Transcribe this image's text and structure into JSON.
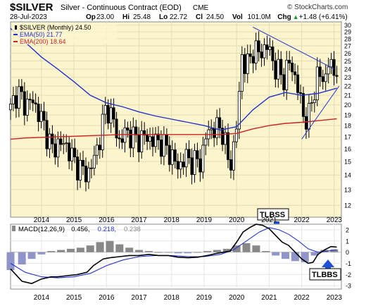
{
  "header": {
    "symbol": "$SILVER",
    "description": "Silver - Continuous Contract (EOD)",
    "exchange": "CME",
    "watermark": "© StockCharts.com",
    "date": "28-Jul-2023",
    "stats": [
      {
        "label": "Op",
        "value": "23.00"
      },
      {
        "label": "Hi",
        "value": "25.48"
      },
      {
        "label": "Lo",
        "value": "22.72"
      },
      {
        "label": "Cl",
        "value": "24.50"
      },
      {
        "label": "Vol",
        "value": "101.0M"
      },
      {
        "label": "Chg",
        "value": "+1.48 (+6.41%)"
      }
    ],
    "stat_arrow": "▲"
  },
  "legend": [
    {
      "text": "$SILVER (Monthly) 24.50",
      "color": "#000000"
    },
    {
      "text": "EMA(50) 21.77",
      "color": "#2233cc"
    },
    {
      "text": "EMA(200) 18.64",
      "color": "#cc2222"
    }
  ],
  "macd_legend": {
    "label": "MACD(12,26,9)",
    "macd": "0.456,",
    "signal": "0.218,",
    "hist": "0.238"
  },
  "annotations": [
    {
      "text": "TLBSS"
    },
    {
      "text": "TLBBS"
    }
  ],
  "colors": {
    "price_bg": "#fbf4cc",
    "candle": "#000000",
    "ema50": "#2233cc",
    "ema200": "#cc2222",
    "trendline": "#2233cc",
    "macd_line": "#000000",
    "signal_line": "#2233cc",
    "hist_pos": "#888888",
    "hist_neg": "#8f95c8",
    "arrow": "#1f4fd6"
  },
  "chart_data": [
    {
      "type": "candlestick",
      "title": "$SILVER Silver - Continuous Contract (EOD) CME",
      "x_ticks": [
        "2014",
        "2015",
        "2016",
        "2017",
        "2018",
        "2019",
        "2020",
        "2021",
        "2022",
        "2023"
      ],
      "y_ticks": [
        12,
        13,
        14,
        15,
        16,
        17,
        18,
        19,
        20,
        21,
        22,
        23,
        24,
        25,
        26,
        27,
        28,
        29,
        30
      ],
      "y_scale": "log",
      "ylim": [
        11.3,
        30.5
      ],
      "series": [
        {
          "name": "$SILVER (Monthly)",
          "kind": "close_path",
          "x": [
            2013.55,
            2013.75,
            2014.0,
            2014.2,
            2014.45,
            2014.7,
            2014.85,
            2015.0,
            2015.3,
            2015.5,
            2015.7,
            2015.9,
            2016.1,
            2016.3,
            2016.5,
            2016.7,
            2016.9,
            2017.1,
            2017.4,
            2017.7,
            2017.9,
            2018.2,
            2018.5,
            2018.7,
            2018.9,
            2019.2,
            2019.4,
            2019.6,
            2019.9,
            2020.1,
            2020.22,
            2020.35,
            2020.55,
            2020.65,
            2020.8,
            2021.0,
            2021.2,
            2021.45,
            2021.7,
            2021.95,
            2022.15,
            2022.4,
            2022.55,
            2022.7,
            2022.85,
            2023.0,
            2023.2,
            2023.35,
            2023.45,
            2023.58
          ],
          "y": [
            19.5,
            21.5,
            20.0,
            20.5,
            19.0,
            17.0,
            15.8,
            16.5,
            16.2,
            15.0,
            14.5,
            14.0,
            15.0,
            17.0,
            20.0,
            18.5,
            16.5,
            17.5,
            16.8,
            17.0,
            16.7,
            16.5,
            15.5,
            14.5,
            15.3,
            15.0,
            15.0,
            17.5,
            17.8,
            17.5,
            15.0,
            15.0,
            19.0,
            26.0,
            24.0,
            26.5,
            26.0,
            27.0,
            24.0,
            23.0,
            25.0,
            21.5,
            19.0,
            18.5,
            21.0,
            23.5,
            22.5,
            25.5,
            23.0,
            24.5
          ]
        },
        {
          "name": "EMA(50)",
          "x": [
            2013.55,
            2014.0,
            2014.5,
            2015.0,
            2015.5,
            2016.0,
            2016.5,
            2017.0,
            2017.5,
            2018.0,
            2018.5,
            2019.0,
            2019.5,
            2020.0,
            2020.5,
            2021.0,
            2021.5,
            2022.0,
            2022.5,
            2023.0,
            2023.58
          ],
          "y": [
            29.5,
            27.5,
            25.5,
            24.0,
            22.5,
            21.0,
            20.2,
            19.8,
            19.3,
            18.9,
            18.6,
            18.3,
            18.0,
            17.6,
            17.9,
            19.5,
            20.8,
            21.3,
            21.0,
            21.2,
            21.77
          ]
        },
        {
          "name": "EMA(200)",
          "x": [
            2013.55,
            2014.0,
            2015.0,
            2016.0,
            2017.0,
            2018.0,
            2019.0,
            2020.0,
            2020.5,
            2021.0,
            2021.5,
            2022.0,
            2022.5,
            2023.0,
            2023.58
          ],
          "y": [
            16.8,
            16.9,
            17.0,
            17.1,
            17.2,
            17.2,
            17.2,
            17.2,
            17.3,
            17.7,
            18.0,
            18.2,
            18.3,
            18.45,
            18.64
          ]
        }
      ],
      "trendlines": [
        {
          "x": [
            2021.0,
            2023.5
          ],
          "y": [
            29.7,
            24.0
          ]
        },
        {
          "x": [
            2022.5,
            2023.65
          ],
          "y": [
            16.8,
            22.0
          ]
        }
      ],
      "annotation": {
        "text": "TLBSS"
      }
    },
    {
      "type": "line",
      "title": "MACD(12,26,9)",
      "x_ticks": [
        "2014",
        "2015",
        "2016",
        "2017",
        "2018",
        "2019",
        "2020",
        "2021",
        "2022",
        "2023"
      ],
      "y_ticks": [
        -3,
        -2,
        -1,
        0,
        1,
        2
      ],
      "ylim": [
        -3.3,
        2.5
      ],
      "series": [
        {
          "name": "MACD",
          "x": [
            2013.55,
            2013.9,
            2014.2,
            2014.5,
            2014.8,
            2015.0,
            2015.3,
            2015.6,
            2015.9,
            2016.1,
            2016.4,
            2016.6,
            2016.9,
            2017.2,
            2017.5,
            2017.8,
            2018.1,
            2018.4,
            2018.7,
            2019.0,
            2019.3,
            2019.6,
            2019.9,
            2020.1,
            2020.3,
            2020.5,
            2020.7,
            2020.9,
            2021.1,
            2021.3,
            2021.5,
            2021.7,
            2021.9,
            2022.1,
            2022.3,
            2022.5,
            2022.7,
            2022.85,
            2023.0,
            2023.2,
            2023.4,
            2023.58
          ],
          "y": [
            -1.5,
            -2.6,
            -2.8,
            -2.4,
            -2.2,
            -2.2,
            -2.1,
            -2.0,
            -1.8,
            -1.2,
            -0.6,
            -0.5,
            -0.4,
            -0.3,
            -0.3,
            -0.2,
            -0.3,
            -0.3,
            -0.45,
            -0.5,
            -0.45,
            -0.3,
            -0.1,
            0.0,
            0.1,
            0.9,
            1.8,
            2.2,
            2.5,
            2.4,
            2.1,
            1.5,
            0.9,
            0.6,
            0.0,
            -0.6,
            -1.0,
            -0.9,
            -0.2,
            0.2,
            0.5,
            0.456
          ]
        },
        {
          "name": "Signal",
          "x": [
            2013.55,
            2014.0,
            2014.5,
            2015.0,
            2015.5,
            2016.0,
            2016.5,
            2017.0,
            2017.5,
            2018.0,
            2018.5,
            2019.0,
            2019.5,
            2020.0,
            2020.4,
            2020.8,
            2021.2,
            2021.5,
            2021.8,
            2022.1,
            2022.4,
            2022.7,
            2023.0,
            2023.3,
            2023.58
          ],
          "y": [
            -1.0,
            -1.8,
            -2.2,
            -2.3,
            -2.2,
            -1.9,
            -1.2,
            -0.7,
            -0.4,
            -0.3,
            -0.3,
            -0.4,
            -0.4,
            -0.2,
            0.2,
            1.0,
            1.8,
            2.2,
            2.0,
            1.6,
            1.0,
            0.3,
            0.0,
            0.1,
            0.218
          ]
        }
      ],
      "histogram": {
        "x": [
          2013.55,
          2013.9,
          2014.2,
          2014.5,
          2014.8,
          2015.1,
          2015.4,
          2015.7,
          2016.0,
          2016.3,
          2016.6,
          2016.9,
          2017.2,
          2017.5,
          2017.8,
          2018.1,
          2018.4,
          2018.7,
          2019.0,
          2019.3,
          2019.6,
          2019.9,
          2020.2,
          2020.5,
          2020.8,
          2021.1,
          2021.4,
          2021.7,
          2022.0,
          2022.3,
          2022.6,
          2022.9,
          2023.2,
          2023.5
        ],
        "values": [
          -1.6,
          -1.1,
          -0.6,
          -0.2,
          0.1,
          0.2,
          0.3,
          0.4,
          0.6,
          0.9,
          1.0,
          0.7,
          0.4,
          0.2,
          0.1,
          0.0,
          -0.05,
          -0.1,
          -0.1,
          0.0,
          0.1,
          0.2,
          0.3,
          0.6,
          0.8,
          0.6,
          0.1,
          -0.3,
          -0.6,
          -0.8,
          -0.9,
          -0.3,
          0.2,
          0.24
        ]
      },
      "annotation": {
        "text": "TLBBS"
      }
    }
  ]
}
